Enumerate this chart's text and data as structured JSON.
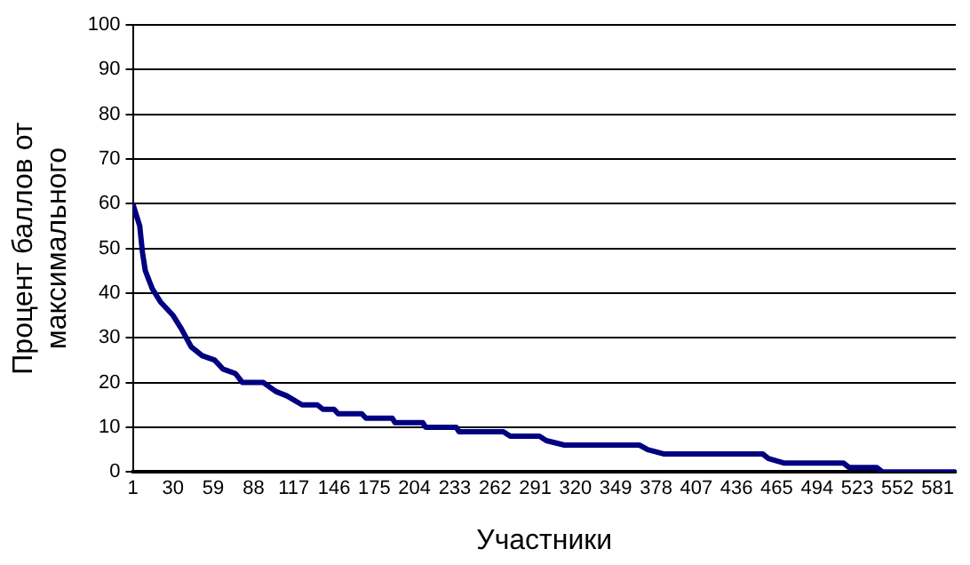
{
  "chart_data": {
    "type": "line",
    "xlabel": "Участники",
    "ylabel": "Процент баллов от максимального",
    "x": [
      1,
      6,
      8,
      10,
      15,
      21,
      30,
      36,
      43,
      51,
      60,
      66,
      75,
      80,
      95,
      104,
      112,
      123,
      134,
      138,
      146,
      149,
      166,
      169,
      188,
      190,
      210,
      212,
      234,
      236,
      268,
      273,
      294,
      299,
      312,
      366,
      372,
      384,
      455,
      459,
      470,
      513,
      517,
      537,
      541,
      594
    ],
    "series": [
      {
        "color": "#000080",
        "values": [
          60,
          55,
          49,
          45,
          41,
          38,
          35,
          32,
          28,
          26,
          25,
          23,
          22,
          20,
          20,
          18,
          17,
          15,
          15,
          14,
          14,
          13,
          13,
          12,
          12,
          11,
          11,
          10,
          10,
          9,
          9,
          8,
          8,
          7,
          6,
          6,
          5,
          4,
          4,
          3,
          2,
          2,
          1,
          1,
          0,
          0
        ]
      }
    ],
    "xlim": [
      1,
      594
    ],
    "xticks": [
      1,
      30,
      59,
      88,
      117,
      146,
      175,
      204,
      233,
      262,
      291,
      320,
      349,
      378,
      407,
      436,
      465,
      494,
      523,
      552,
      581
    ],
    "ylim": [
      0,
      100
    ],
    "yticks": [
      0,
      10,
      20,
      30,
      40,
      50,
      60,
      70,
      80,
      90,
      100
    ],
    "grid": "y",
    "legend": false,
    "marker": "none",
    "line_style": "solid"
  }
}
